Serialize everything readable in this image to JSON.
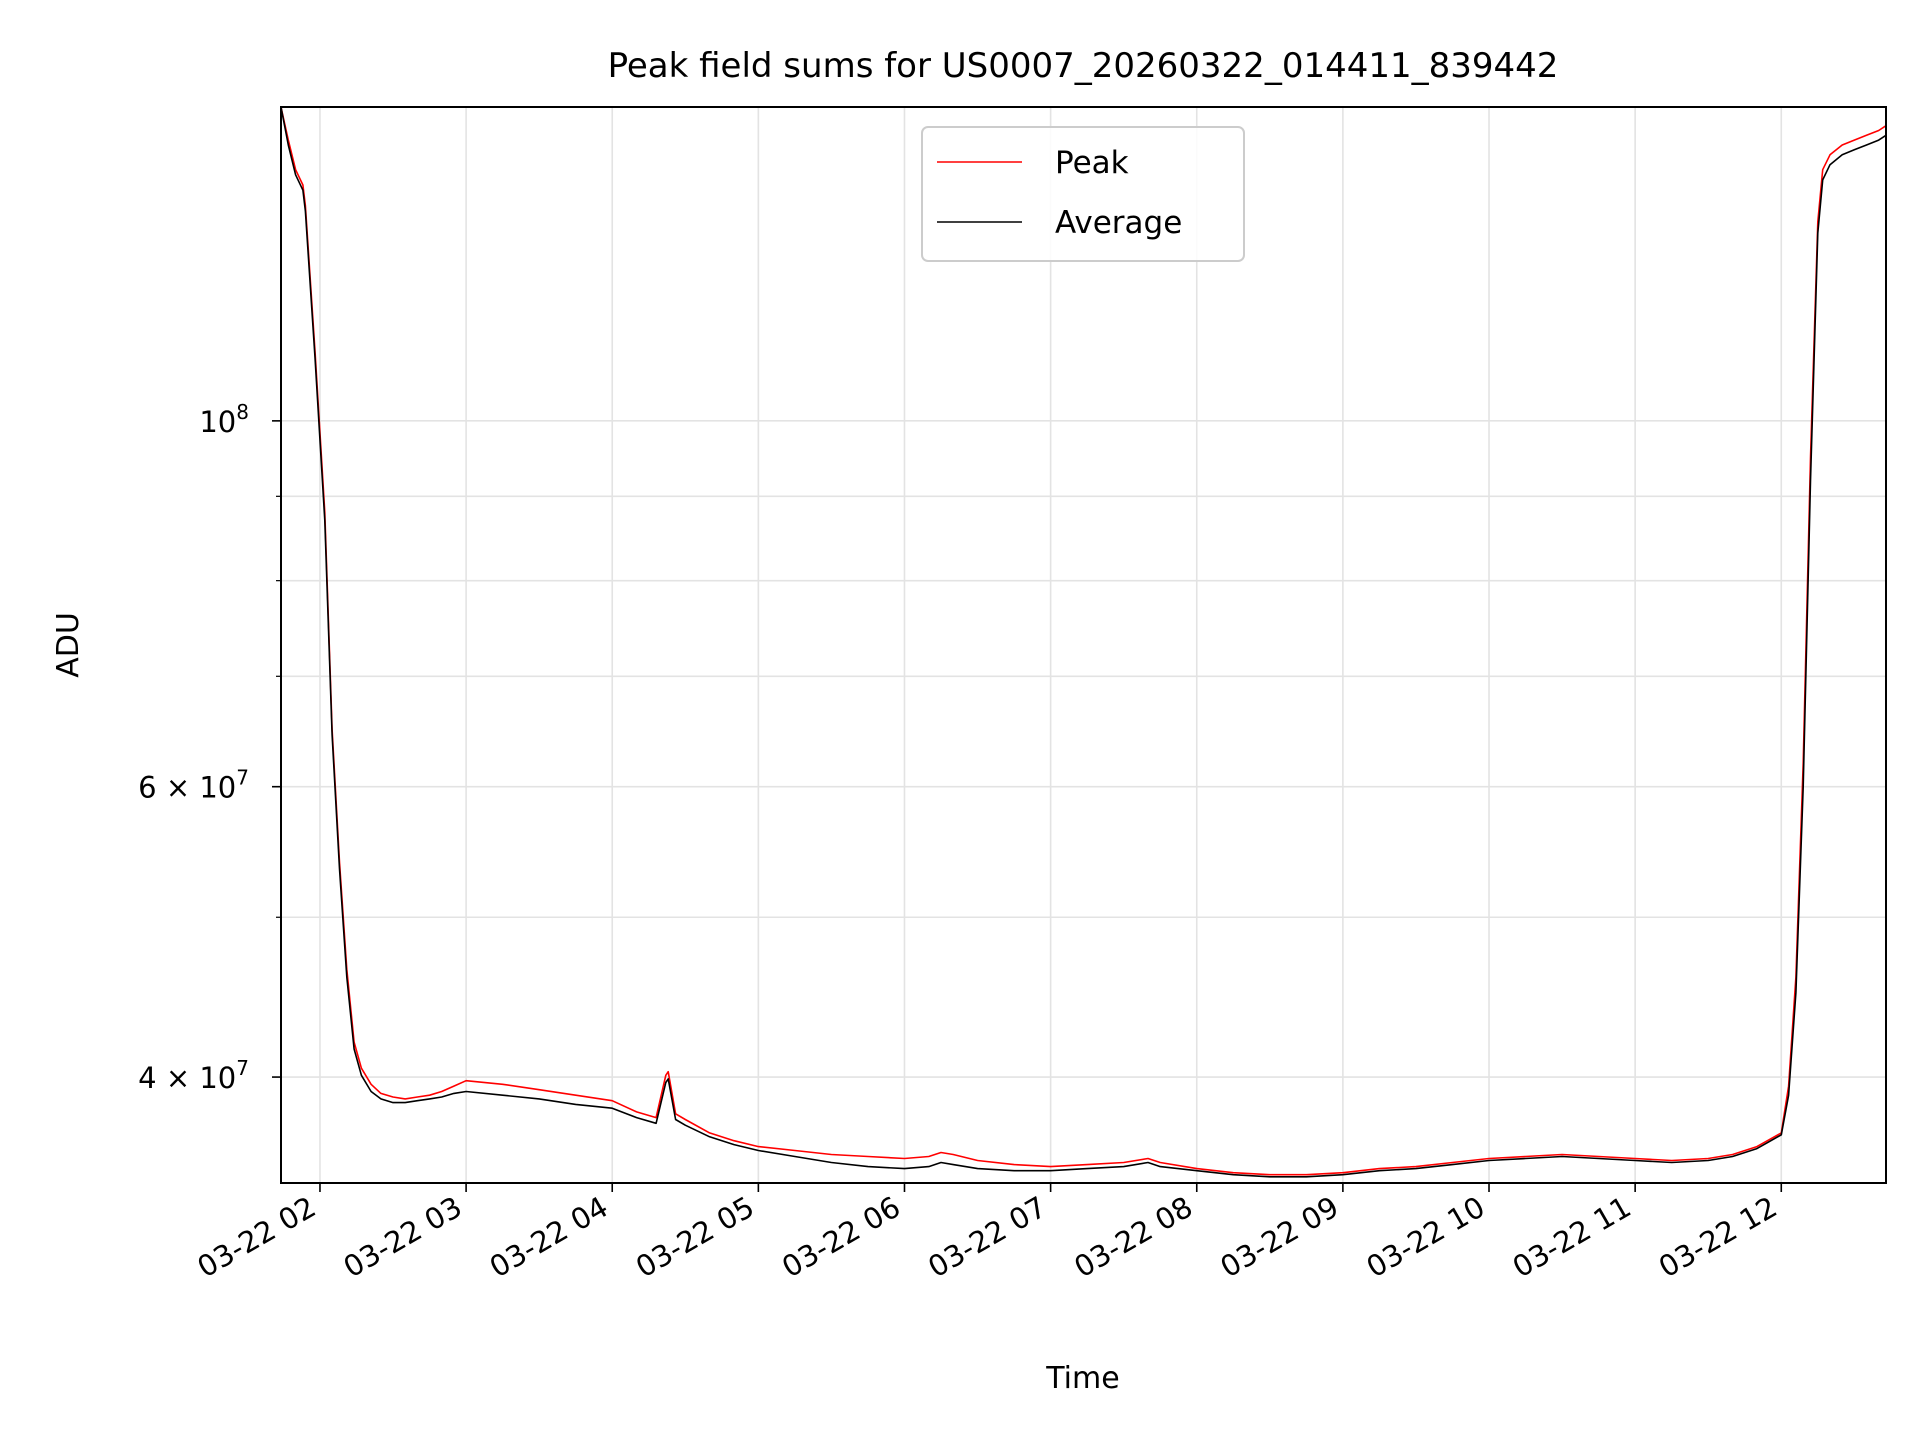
{
  "chart_data": {
    "type": "line",
    "title": "Peak field sums for US0007_20260322_014411_839442",
    "xlabel": "Time",
    "ylabel": "ADU",
    "yscale": "log",
    "grid": true,
    "legend_position": "upper-center",
    "x_date": "2026-03-22",
    "xlim": [
      "01:44",
      "12:43"
    ],
    "ylim": [
      34500000,
      155000000
    ],
    "x_ticks": [
      "02:00",
      "03:00",
      "04:00",
      "05:00",
      "06:00",
      "07:00",
      "08:00",
      "09:00",
      "10:00",
      "11:00",
      "12:00"
    ],
    "x_tick_labels": [
      "03-22 02",
      "03-22 03",
      "03-22 04",
      "03-22 05",
      "03-22 06",
      "03-22 07",
      "03-22 08",
      "03-22 09",
      "03-22 10",
      "03-22 11",
      "03-22 12"
    ],
    "y_tick_labels": [
      {
        "value": 100000000,
        "base": "10",
        "exp": "8",
        "mant": ""
      },
      {
        "value": 60000000,
        "base": "10",
        "exp": "7",
        "mant": "6 × "
      },
      {
        "value": 40000000,
        "base": "10",
        "exp": "7",
        "mant": "4 × "
      }
    ],
    "y_minor_ticks": [
      50000000,
      70000000,
      80000000,
      90000000,
      200000000
    ],
    "series": [
      {
        "name": "Peak",
        "color": "#ff0000",
        "x": [
          "01:44",
          "01:47",
          "01:50",
          "01:53",
          "01:54",
          "01:58",
          "02:02",
          "02:05",
          "02:08",
          "02:11",
          "02:14",
          "02:17",
          "02:21",
          "02:25",
          "02:30",
          "02:35",
          "02:40",
          "02:45",
          "02:50",
          "02:55",
          "03:00",
          "03:15",
          "03:30",
          "03:45",
          "04:00",
          "04:10",
          "04:18",
          "04:22",
          "04:23",
          "04:26",
          "04:30",
          "04:40",
          "04:50",
          "05:00",
          "05:15",
          "05:30",
          "05:45",
          "06:00",
          "06:10",
          "06:15",
          "06:20",
          "06:30",
          "06:45",
          "07:00",
          "07:15",
          "07:30",
          "07:40",
          "07:45",
          "08:00",
          "08:15",
          "08:30",
          "08:45",
          "09:00",
          "09:15",
          "09:30",
          "09:45",
          "10:00",
          "10:15",
          "10:30",
          "10:45",
          "11:00",
          "11:15",
          "11:30",
          "11:40",
          "11:50",
          "12:00",
          "12:03",
          "12:06",
          "12:09",
          "12:12",
          "12:15",
          "12:17",
          "12:20",
          "12:25",
          "12:30",
          "12:35",
          "12:40",
          "12:43"
        ],
        "y": [
          155000000,
          148000000,
          142000000,
          139000000,
          135000000,
          110000000,
          88000000,
          65000000,
          54000000,
          46500000,
          42000000,
          40500000,
          39600000,
          39100000,
          38900000,
          38800000,
          38900000,
          39000000,
          39200000,
          39500000,
          39800000,
          39600000,
          39300000,
          39000000,
          38700000,
          38100000,
          37800000,
          40100000,
          40300000,
          38000000,
          37700000,
          37000000,
          36600000,
          36300000,
          36100000,
          35900000,
          35800000,
          35700000,
          35800000,
          36000000,
          35900000,
          35600000,
          35400000,
          35300000,
          35400000,
          35500000,
          35700000,
          35500000,
          35200000,
          35000000,
          34900000,
          34900000,
          35000000,
          35200000,
          35300000,
          35500000,
          35700000,
          35800000,
          35900000,
          35800000,
          35700000,
          35600000,
          35700000,
          35900000,
          36300000,
          37000000,
          39500000,
          46000000,
          62000000,
          95000000,
          132000000,
          142000000,
          145000000,
          147000000,
          148000000,
          149000000,
          150000000,
          151000000
        ]
      },
      {
        "name": "Average",
        "color": "#000000",
        "x": [
          "01:44",
          "01:47",
          "01:50",
          "01:53",
          "01:54",
          "01:58",
          "02:02",
          "02:05",
          "02:08",
          "02:11",
          "02:14",
          "02:17",
          "02:21",
          "02:25",
          "02:30",
          "02:35",
          "02:40",
          "02:45",
          "02:50",
          "02:55",
          "03:00",
          "03:15",
          "03:30",
          "03:45",
          "04:00",
          "04:10",
          "04:18",
          "04:22",
          "04:23",
          "04:26",
          "04:30",
          "04:40",
          "04:50",
          "05:00",
          "05:15",
          "05:30",
          "05:45",
          "06:00",
          "06:10",
          "06:15",
          "06:20",
          "06:30",
          "06:45",
          "07:00",
          "07:15",
          "07:30",
          "07:40",
          "07:45",
          "08:00",
          "08:15",
          "08:30",
          "08:45",
          "09:00",
          "09:15",
          "09:30",
          "09:45",
          "10:00",
          "10:15",
          "10:30",
          "10:45",
          "11:00",
          "11:15",
          "11:30",
          "11:40",
          "11:50",
          "12:00",
          "12:03",
          "12:06",
          "12:09",
          "12:12",
          "12:15",
          "12:17",
          "12:20",
          "12:25",
          "12:30",
          "12:35",
          "12:40",
          "12:43"
        ],
        "y": [
          155000000,
          147000000,
          141000000,
          138000000,
          134000000,
          109000000,
          87000000,
          64500000,
          53500000,
          46000000,
          41600000,
          40100000,
          39200000,
          38800000,
          38600000,
          38600000,
          38700000,
          38800000,
          38900000,
          39100000,
          39200000,
          39000000,
          38800000,
          38500000,
          38300000,
          37800000,
          37500000,
          39700000,
          39900000,
          37700000,
          37400000,
          36800000,
          36400000,
          36100000,
          35800000,
          35500000,
          35300000,
          35200000,
          35300000,
          35500000,
          35400000,
          35200000,
          35100000,
          35100000,
          35200000,
          35300000,
          35500000,
          35300000,
          35100000,
          34900000,
          34800000,
          34800000,
          34900000,
          35100000,
          35200000,
          35400000,
          35600000,
          35700000,
          35800000,
          35700000,
          35600000,
          35500000,
          35600000,
          35800000,
          36200000,
          36900000,
          39000000,
          45000000,
          60000000,
          92000000,
          130000000,
          140000000,
          143000000,
          145000000,
          146000000,
          147000000,
          148000000,
          149000000
        ]
      }
    ]
  }
}
